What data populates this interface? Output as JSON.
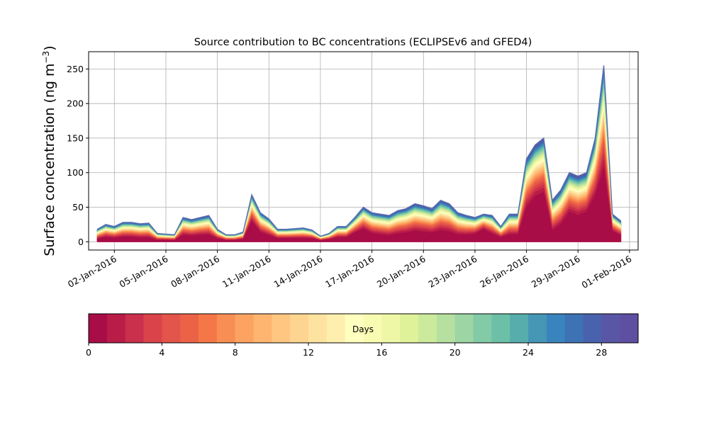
{
  "chart_data": {
    "type": "area",
    "title": "Source contribution to BC concentrations (ECLIPSEv6 and GFED4)",
    "ylabel_main": "Surface concentration (ng m",
    "ylabel_exp": "−3",
    "ylabel_close": ")",
    "xlabel": "",
    "grid": true,
    "stacking": "cumulative",
    "x_start": "2016-01-01",
    "x_end": "2016-01-31",
    "xlim": [
      "2015-12-31T12:00",
      "2016-02-01T12:00"
    ],
    "ylim": [
      -12,
      275
    ],
    "x_ticks": [
      "02-Jan-2016",
      "05-Jan-2016",
      "08-Jan-2016",
      "11-Jan-2016",
      "14-Jan-2016",
      "17-Jan-2016",
      "20-Jan-2016",
      "23-Jan-2016",
      "26-Jan-2016",
      "29-Jan-2016",
      "01-Feb-2016"
    ],
    "y_ticks": [
      0,
      50,
      100,
      150,
      200,
      250
    ],
    "total_times": [
      "2016-01-01T00",
      "2016-01-01T12",
      "2016-01-02T00",
      "2016-01-02T12",
      "2016-01-03T00",
      "2016-01-03T12",
      "2016-01-04T00",
      "2016-01-04T12",
      "2016-01-05T00",
      "2016-01-05T12",
      "2016-01-06T00",
      "2016-01-06T12",
      "2016-01-07T00",
      "2016-01-07T12",
      "2016-01-08T00",
      "2016-01-08T12",
      "2016-01-09T00",
      "2016-01-09T12",
      "2016-01-10T00",
      "2016-01-10T12",
      "2016-01-11T00",
      "2016-01-11T12",
      "2016-01-12T00",
      "2016-01-12T12",
      "2016-01-13T00",
      "2016-01-13T12",
      "2016-01-14T00",
      "2016-01-14T12",
      "2016-01-15T00",
      "2016-01-15T12",
      "2016-01-16T00",
      "2016-01-16T12",
      "2016-01-17T00",
      "2016-01-17T12",
      "2016-01-18T00",
      "2016-01-18T12",
      "2016-01-19T00",
      "2016-01-19T12",
      "2016-01-20T00",
      "2016-01-20T12",
      "2016-01-21T00",
      "2016-01-21T12",
      "2016-01-22T00",
      "2016-01-22T12",
      "2016-01-23T00",
      "2016-01-23T12",
      "2016-01-24T00",
      "2016-01-24T12",
      "2016-01-25T00",
      "2016-01-25T12",
      "2016-01-26T00",
      "2016-01-26T12",
      "2016-01-27T00",
      "2016-01-27T12",
      "2016-01-28T00",
      "2016-01-28T12",
      "2016-01-29T00",
      "2016-01-29T12",
      "2016-01-30T00",
      "2016-01-30T12",
      "2016-01-31T00",
      "2016-01-31T12"
    ],
    "total_values": [
      18,
      25,
      22,
      28,
      28,
      26,
      27,
      12,
      11,
      10,
      35,
      32,
      35,
      38,
      18,
      10,
      10,
      14,
      68,
      42,
      33,
      18,
      18,
      19,
      20,
      17,
      8,
      12,
      22,
      22,
      35,
      50,
      42,
      40,
      38,
      45,
      48,
      55,
      52,
      48,
      60,
      55,
      42,
      38,
      35,
      40,
      38,
      22,
      40,
      40,
      120,
      140,
      150,
      60,
      75,
      100,
      95,
      100,
      150,
      255,
      40,
      30
    ],
    "base_values": [
      2,
      4,
      3,
      4,
      4,
      3,
      3,
      1,
      1,
      1,
      6,
      5,
      6,
      6,
      3,
      1,
      1,
      2,
      24,
      10,
      6,
      3,
      3,
      3,
      3,
      3,
      1,
      2,
      4,
      4,
      10,
      14,
      8,
      6,
      5,
      7,
      8,
      10,
      9,
      8,
      10,
      9,
      6,
      6,
      8,
      15,
      8,
      4,
      6,
      6,
      40,
      55,
      60,
      10,
      18,
      35,
      30,
      35,
      55,
      85,
      12,
      6
    ],
    "colorbar": {
      "label": "Days",
      "min": 0,
      "max": 30,
      "ticks": [
        0,
        4,
        8,
        12,
        16,
        20,
        24,
        28
      ],
      "colors": [
        "#a80d48",
        "#b91c47",
        "#ca2f4b",
        "#da434a",
        "#e3544a",
        "#ec6247",
        "#f57748",
        "#f98e54",
        "#fca362",
        "#fdb570",
        "#fec680",
        "#fed590",
        "#fee3a0",
        "#ffefae",
        "#ffffbf",
        "#f8fbb2",
        "#eef7a6",
        "#e0f299",
        "#cbea9c",
        "#b5e0a0",
        "#9dd5a4",
        "#83caa6",
        "#6cc0a7",
        "#56adac",
        "#4597b5",
        "#3a84bd",
        "#3d72b5",
        "#4962ad",
        "#5a56a6",
        "#5e4fa2"
      ]
    }
  }
}
